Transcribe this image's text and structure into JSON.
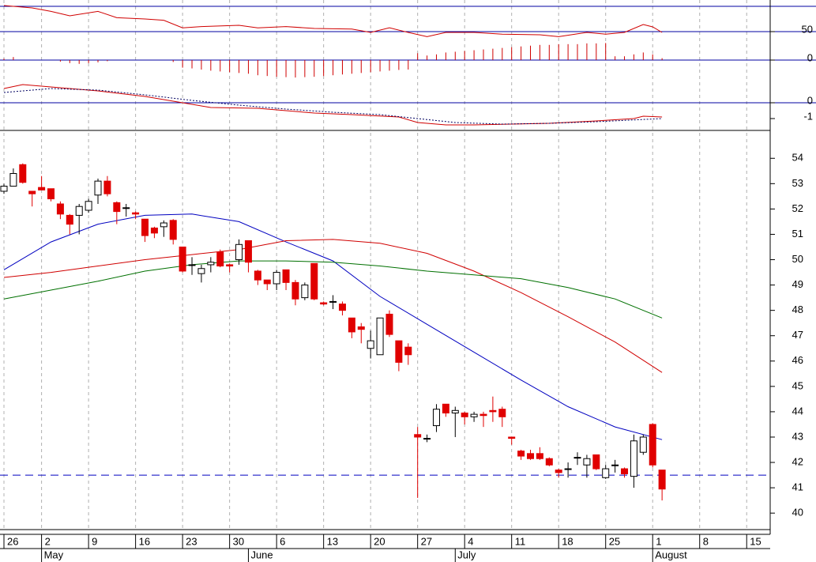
{
  "chart_data": [
    {
      "type": "line",
      "xlim": [
        -0.42,
        81.5
      ],
      "ylim": [
        38.75,
        75
      ],
      "yticks": [
        50
      ],
      "hlines": [
        70,
        50
      ],
      "series": [
        {
          "color": "#d00000",
          "x": [
            0,
            3,
            5,
            7,
            10,
            12,
            15,
            17,
            19,
            21,
            25,
            27,
            30,
            33,
            37,
            39,
            41,
            43,
            45,
            47,
            50,
            53,
            57,
            59,
            62,
            64,
            66,
            68,
            69,
            70
          ],
          "values": [
            70.6,
            68.75,
            66,
            62.5,
            66,
            61,
            60,
            59,
            53,
            54,
            55,
            53,
            54,
            52.5,
            52,
            49.4,
            53,
            49.4,
            46,
            49.4,
            49.4,
            48,
            47.5,
            46,
            49.4,
            48,
            49.4,
            55.6,
            53.75,
            49.4
          ]
        }
      ]
    },
    {
      "type": "bar",
      "xlim": [
        -0.42,
        81.5
      ],
      "ylim": [
        -0.5,
        0.5
      ],
      "yticks": [
        0
      ],
      "hlines": [
        0
      ],
      "color": "#d00000",
      "x": [
        0,
        1,
        2,
        3,
        4,
        5,
        6,
        7,
        8,
        9,
        10,
        11,
        12,
        13,
        14,
        15,
        16,
        17,
        18,
        19,
        20,
        21,
        22,
        23,
        24,
        25,
        26,
        27,
        28,
        29,
        30,
        31,
        32,
        33,
        34,
        35,
        36,
        37,
        38,
        39,
        40,
        41,
        42,
        43,
        44,
        45,
        46,
        47,
        48,
        49,
        50,
        51,
        52,
        53,
        54,
        55,
        56,
        57,
        58,
        59,
        60,
        61,
        62,
        63,
        64,
        65,
        66,
        67,
        68,
        69,
        70
      ],
      "values": [
        0.04,
        0.08,
        0,
        0,
        0,
        0,
        -0.04,
        -0.08,
        -0.1,
        -0.08,
        -0.06,
        -0.03,
        0,
        0,
        0,
        0,
        0,
        0,
        -0.05,
        -0.2,
        -0.22,
        -0.25,
        -0.28,
        -0.3,
        -0.32,
        -0.34,
        -0.36,
        -0.4,
        -0.42,
        -0.44,
        -0.45,
        -0.46,
        -0.45,
        -0.44,
        -0.42,
        -0.4,
        -0.38,
        -0.36,
        -0.34,
        -0.32,
        -0.3,
        -0.28,
        -0.26,
        -0.25,
        0.18,
        0.12,
        0.15,
        0.2,
        0.22,
        0.24,
        0.26,
        0.28,
        0.3,
        0.32,
        0.34,
        0.36,
        0.38,
        0.4,
        0.4,
        0.42,
        0.42,
        0.42,
        0.44,
        0.44,
        0.45,
        0.1,
        0.1,
        0.15,
        0.2,
        0.15,
        0.05
      ]
    },
    {
      "type": "line",
      "xlim": [
        -0.42,
        81.5
      ],
      "ylim": [
        -1.75,
        1.75
      ],
      "yticks": [
        0,
        -1
      ],
      "hlines": [
        0
      ],
      "series": [
        {
          "color": "#d00000",
          "x": [
            0,
            2,
            5,
            10,
            15,
            19,
            22,
            27,
            30,
            33,
            37,
            42,
            44,
            47,
            50,
            54,
            58,
            63,
            67,
            68,
            70
          ],
          "values": [
            0.9,
            1.15,
            1.0,
            0.75,
            0.4,
            0,
            -0.3,
            -0.35,
            -0.5,
            -0.65,
            -0.75,
            -0.9,
            -1.25,
            -1.4,
            -1.4,
            -1.35,
            -1.3,
            -1.15,
            -1.0,
            -0.85,
            -0.9
          ]
        },
        {
          "color": "#000060",
          "dash": true,
          "x": [
            0,
            5,
            10,
            15,
            20,
            25,
            30,
            35,
            40,
            44,
            48,
            53,
            58,
            63,
            70
          ],
          "values": [
            0.65,
            0.9,
            0.8,
            0.5,
            0.15,
            -0.15,
            -0.4,
            -0.6,
            -0.75,
            -1.0,
            -1.25,
            -1.35,
            -1.3,
            -1.2,
            -1.0
          ]
        }
      ]
    },
    {
      "type": "candlestick",
      "xlim": [
        -0.42,
        81.5
      ],
      "ylim": [
        39.35,
        55.1
      ],
      "yticks": [
        40,
        41,
        42,
        43,
        44,
        45,
        46,
        47,
        48,
        49,
        50,
        51,
        52,
        53,
        54
      ],
      "hline": 41.5,
      "hline_color": "#0000c0",
      "xticks": [
        {
          "value": 0,
          "label": "26"
        },
        {
          "value": 4,
          "label": "2"
        },
        {
          "value": 9,
          "label": "9"
        },
        {
          "value": 14,
          "label": "16"
        },
        {
          "value": 19,
          "label": "23"
        },
        {
          "value": 24,
          "label": "30"
        },
        {
          "value": 29,
          "label": "6"
        },
        {
          "value": 34,
          "label": "13"
        },
        {
          "value": 39,
          "label": "20"
        },
        {
          "value": 44,
          "label": "27"
        },
        {
          "value": 49,
          "label": "4"
        },
        {
          "value": 54,
          "label": "11"
        },
        {
          "value": 59,
          "label": "18"
        },
        {
          "value": 64,
          "label": "25"
        },
        {
          "value": 69,
          "label": "1"
        },
        {
          "value": 74,
          "label": "8"
        },
        {
          "value": 79,
          "label": "15"
        }
      ],
      "month_ticks": [
        {
          "value": 4,
          "label": "May"
        },
        {
          "value": 26,
          "label": "June"
        },
        {
          "value": 48,
          "label": "July"
        },
        {
          "value": 69,
          "label": "August"
        }
      ],
      "up_color": "#ffffff",
      "down_color": "#e00000",
      "x": [
        0,
        1,
        2,
        3,
        4,
        5,
        6,
        7,
        8,
        9,
        10,
        11,
        12,
        13,
        14,
        15,
        16,
        17,
        18,
        19,
        20,
        21,
        22,
        23,
        24,
        25,
        26,
        27,
        28,
        29,
        30,
        31,
        32,
        33,
        34,
        35,
        36,
        37,
        38,
        39,
        40,
        41,
        42,
        43,
        44,
        45,
        46,
        47,
        48,
        49,
        50,
        51,
        52,
        53,
        54,
        55,
        56,
        57,
        58,
        59,
        60,
        61,
        62,
        63,
        64,
        65,
        66,
        67,
        68,
        69,
        70
      ],
      "open": [
        52.7,
        52.9,
        53.75,
        52.7,
        52.85,
        52.8,
        52.2,
        51.75,
        51.75,
        51.95,
        52.55,
        53.1,
        52.25,
        52.05,
        51.85,
        51.6,
        51.25,
        51.3,
        51.55,
        50.5,
        49.8,
        49.45,
        49.8,
        50.3,
        49.8,
        50.0,
        50.75,
        49.55,
        49.2,
        49.05,
        49.6,
        49.1,
        48.5,
        49.85,
        48.3,
        48.35,
        48.25,
        47.7,
        47.35,
        46.5,
        46.25,
        47.85,
        46.8,
        46.55,
        43.1,
        42.95,
        43.45,
        44.3,
        43.95,
        43.95,
        43.8,
        43.9,
        44.05,
        44.1,
        43.0,
        42.45,
        42.35,
        42.35,
        42.15,
        41.7,
        41.75,
        42.2,
        41.9,
        42.3,
        41.4,
        41.9,
        41.75,
        41.45,
        42.4,
        43.5,
        41.7
      ],
      "high": [
        53.0,
        53.6,
        53.8,
        52.7,
        53.3,
        52.8,
        52.3,
        51.8,
        52.2,
        52.4,
        53.2,
        53.3,
        52.3,
        52.2,
        51.9,
        51.6,
        51.3,
        51.55,
        51.6,
        50.5,
        50.1,
        49.8,
        50.1,
        50.4,
        49.85,
        50.8,
        50.75,
        49.6,
        49.2,
        49.6,
        49.6,
        49.2,
        49.1,
        49.85,
        48.35,
        48.6,
        48.35,
        47.7,
        47.5,
        47.2,
        47.7,
        48.0,
        46.8,
        46.7,
        43.4,
        43.1,
        44.3,
        44.3,
        44.2,
        44.0,
        44.0,
        44.0,
        44.6,
        44.2,
        43.0,
        42.5,
        42.5,
        42.6,
        42.2,
        41.75,
        42.0,
        42.4,
        42.3,
        42.3,
        41.9,
        42.1,
        41.8,
        43.1,
        43.1,
        43.55,
        41.7
      ],
      "low": [
        52.6,
        52.9,
        53.0,
        52.1,
        52.75,
        52.3,
        51.6,
        51.0,
        51.0,
        51.85,
        52.2,
        52.5,
        51.4,
        51.7,
        51.6,
        50.7,
        50.85,
        50.9,
        50.6,
        49.5,
        49.4,
        49.1,
        49.5,
        49.7,
        49.5,
        49.8,
        49.5,
        49.0,
        48.8,
        48.8,
        48.8,
        48.2,
        48.4,
        48.4,
        48.2,
        48.05,
        47.8,
        46.9,
        46.7,
        46.1,
        46.25,
        46.95,
        45.6,
        45.85,
        40.6,
        42.8,
        43.2,
        43.8,
        43.0,
        43.5,
        43.6,
        43.4,
        43.6,
        43.4,
        42.7,
        42.1,
        42.1,
        42.1,
        41.85,
        41.4,
        41.4,
        41.9,
        41.4,
        41.7,
        41.35,
        41.6,
        41.4,
        41.0,
        42.3,
        41.8,
        40.5
      ],
      "close": [
        52.9,
        53.4,
        53.05,
        52.6,
        52.75,
        52.4,
        51.8,
        51.4,
        52.1,
        52.3,
        53.1,
        52.6,
        51.9,
        52.05,
        51.8,
        50.95,
        51.05,
        51.45,
        50.8,
        49.55,
        49.8,
        49.65,
        49.9,
        49.75,
        49.75,
        50.6,
        49.9,
        49.2,
        49.05,
        49.5,
        49.1,
        48.45,
        49.0,
        48.45,
        48.25,
        48.35,
        48.0,
        47.15,
        47.25,
        46.8,
        47.7,
        47.05,
        45.95,
        46.25,
        43.0,
        42.95,
        44.1,
        43.95,
        44.05,
        43.8,
        43.9,
        43.85,
        44.0,
        43.8,
        42.95,
        42.25,
        42.15,
        42.15,
        41.9,
        41.6,
        41.75,
        42.2,
        42.15,
        41.75,
        41.75,
        41.9,
        41.55,
        42.85,
        43.0,
        41.9,
        40.95
      ],
      "lines": [
        {
          "color": "#0000c0",
          "x": [
            0,
            5,
            10,
            15,
            20,
            25,
            30,
            35,
            40,
            45,
            50,
            55,
            60,
            65,
            70
          ],
          "values": [
            49.6,
            50.7,
            51.4,
            51.75,
            51.8,
            51.5,
            50.7,
            49.95,
            48.55,
            47.45,
            46.35,
            45.25,
            44.2,
            43.4,
            42.9
          ]
        },
        {
          "color": "#d00000",
          "x": [
            0,
            5,
            10,
            15,
            20,
            25,
            30,
            35,
            40,
            45,
            50,
            55,
            60,
            65,
            70
          ],
          "values": [
            49.3,
            49.5,
            49.75,
            50.0,
            50.2,
            50.4,
            50.75,
            50.8,
            50.65,
            50.25,
            49.55,
            48.7,
            47.75,
            46.75,
            45.55
          ]
        },
        {
          "color": "#007000",
          "x": [
            0,
            5,
            10,
            15,
            20,
            25,
            30,
            35,
            40,
            45,
            50,
            55,
            60,
            65,
            70
          ],
          "values": [
            48.45,
            48.8,
            49.15,
            49.55,
            49.8,
            49.95,
            49.95,
            49.9,
            49.75,
            49.55,
            49.4,
            49.25,
            48.9,
            48.45,
            47.7
          ]
        }
      ]
    }
  ]
}
